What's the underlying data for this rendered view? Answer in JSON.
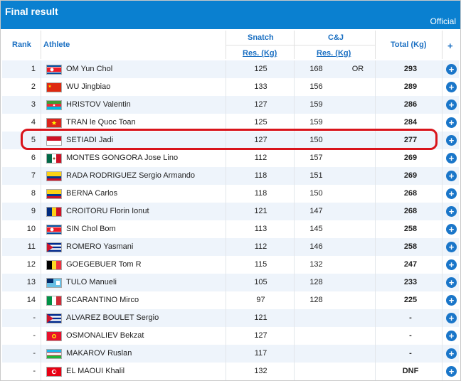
{
  "header": {
    "title": "Final result",
    "official_label": "Official"
  },
  "columns": {
    "rank": "Rank",
    "athlete": "Athlete",
    "snatch": "Snatch",
    "cj": "C&J",
    "res_kg": "Res. (Kg)",
    "total": "Total (Kg)",
    "plus": "+"
  },
  "rows": [
    {
      "rank": "1",
      "name": "OM Yun Chol",
      "snatch": "125",
      "cj": "168",
      "note": "OR",
      "total": "293",
      "flag": "prk-flag-icon"
    },
    {
      "rank": "2",
      "name": "WU Jingbiao",
      "snatch": "133",
      "cj": "156",
      "note": "",
      "total": "289",
      "flag": "chn-flag-icon"
    },
    {
      "rank": "3",
      "name": "HRISTOV Valentin",
      "snatch": "127",
      "cj": "159",
      "note": "",
      "total": "286",
      "flag": "aze-flag-icon"
    },
    {
      "rank": "4",
      "name": "TRAN le Quoc Toan",
      "snatch": "125",
      "cj": "159",
      "note": "",
      "total": "284",
      "flag": "vie-flag-icon"
    },
    {
      "rank": "5",
      "name": "SETIADI Jadi",
      "snatch": "127",
      "cj": "150",
      "note": "",
      "total": "277",
      "flag": "ina-flag-icon"
    },
    {
      "rank": "6",
      "name": "MONTES GONGORA Jose Lino",
      "snatch": "112",
      "cj": "157",
      "note": "",
      "total": "269",
      "flag": "mex-flag-icon"
    },
    {
      "rank": "7",
      "name": "RADA RODRIGUEZ Sergio Armando",
      "snatch": "118",
      "cj": "151",
      "note": "",
      "total": "269",
      "flag": "col-flag-icon"
    },
    {
      "rank": "8",
      "name": "BERNA Carlos",
      "snatch": "118",
      "cj": "150",
      "note": "",
      "total": "268",
      "flag": "col-flag-icon"
    },
    {
      "rank": "9",
      "name": "CROITORU Florin Ionut",
      "snatch": "121",
      "cj": "147",
      "note": "",
      "total": "268",
      "flag": "rou-flag-icon"
    },
    {
      "rank": "10",
      "name": "SIN Chol Bom",
      "snatch": "113",
      "cj": "145",
      "note": "",
      "total": "258",
      "flag": "prk-flag-icon"
    },
    {
      "rank": "11",
      "name": "ROMERO Yasmani",
      "snatch": "112",
      "cj": "146",
      "note": "",
      "total": "258",
      "flag": "cub-flag-icon"
    },
    {
      "rank": "12",
      "name": "GOEGEBUER Tom R",
      "snatch": "115",
      "cj": "132",
      "note": "",
      "total": "247",
      "flag": "bel-flag-icon"
    },
    {
      "rank": "13",
      "name": "TULO Manueli",
      "snatch": "105",
      "cj": "128",
      "note": "",
      "total": "233",
      "flag": "fij-flag-icon"
    },
    {
      "rank": "14",
      "name": "SCARANTINO Mirco",
      "snatch": "97",
      "cj": "128",
      "note": "",
      "total": "225",
      "flag": "ita-flag-icon"
    },
    {
      "rank": "-",
      "name": "ALVAREZ BOULET Sergio",
      "snatch": "121",
      "cj": "",
      "note": "",
      "total": "-",
      "flag": "cub-flag-icon"
    },
    {
      "rank": "-",
      "name": "OSMONALIEV Bekzat",
      "snatch": "127",
      "cj": "",
      "note": "",
      "total": "-",
      "flag": "kgz-flag-icon"
    },
    {
      "rank": "-",
      "name": "MAKAROV Ruslan",
      "snatch": "117",
      "cj": "",
      "note": "",
      "total": "-",
      "flag": "uzb-flag-icon"
    },
    {
      "rank": "-",
      "name": "EL MAOUI Khalil",
      "snatch": "132",
      "cj": "",
      "note": "",
      "total": "DNF",
      "flag": "tun-flag-icon"
    }
  ],
  "plus_glyph": "+",
  "colors": {
    "header": "#0a80d0",
    "accent": "#1a6fc2",
    "highlight": "#d9141b",
    "row_alt": "#eef4fb"
  }
}
